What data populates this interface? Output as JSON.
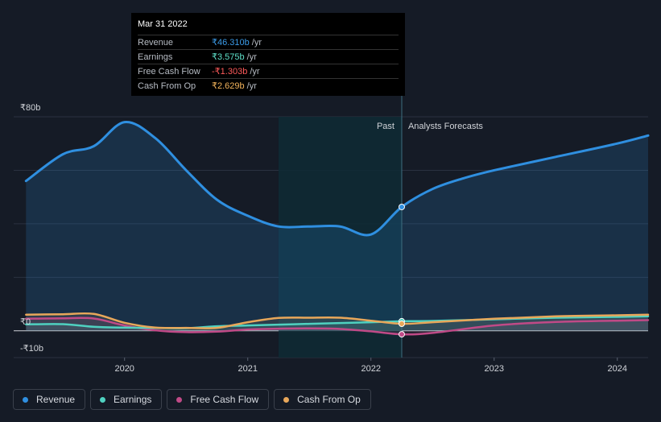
{
  "tooltip": {
    "date": "Mar 31 2022",
    "rows": [
      {
        "label": "Revenue",
        "value": "₹46.310b",
        "unit": "/yr",
        "color": "#3b9be8"
      },
      {
        "label": "Earnings",
        "value": "₹3.575b",
        "unit": "/yr",
        "color": "#5ee0c9"
      },
      {
        "label": "Free Cash Flow",
        "value": "-₹1.303b",
        "unit": "/yr",
        "color": "#ff5a5a"
      },
      {
        "label": "Cash From Op",
        "value": "₹2.629b",
        "unit": "/yr",
        "color": "#f2b35b"
      }
    ]
  },
  "region_labels": {
    "past": "Past",
    "forecast": "Analysts Forecasts"
  },
  "legend": [
    {
      "label": "Revenue",
      "color": "#2f8fe0"
    },
    {
      "label": "Earnings",
      "color": "#4fd1c0"
    },
    {
      "label": "Free Cash Flow",
      "color": "#c04a87"
    },
    {
      "label": "Cash From Op",
      "color": "#e8a75a"
    }
  ],
  "chart_data": {
    "type": "line",
    "y_tick_labels": [
      "₹80b",
      "₹0",
      "-₹10b"
    ],
    "x_tick_labels": [
      "2020",
      "2021",
      "2022",
      "2023",
      "2024"
    ],
    "ylim": [
      -10,
      80
    ],
    "xlim": [
      2019.1,
      2024.25
    ],
    "past_end": 2022.25,
    "highlight_start": 2021.25,
    "series": [
      {
        "name": "Revenue",
        "color": "#2f8fe0",
        "x": [
          2019.2,
          2019.5,
          2019.75,
          2020.0,
          2020.25,
          2020.5,
          2020.75,
          2021.0,
          2021.25,
          2021.5,
          2021.75,
          2022.0,
          2022.25,
          2022.5,
          2022.75,
          2023.0,
          2023.5,
          2024.0,
          2024.25
        ],
        "y": [
          56,
          66,
          69,
          78,
          72,
          60,
          49,
          43,
          39,
          39,
          39,
          36,
          46.3,
          53,
          57,
          60,
          65,
          70,
          73
        ]
      },
      {
        "name": "Earnings",
        "color": "#4fd1c0",
        "x": [
          2019.2,
          2019.5,
          2019.75,
          2020.0,
          2020.25,
          2020.5,
          2020.75,
          2021.0,
          2021.25,
          2021.5,
          2021.75,
          2022.0,
          2022.25,
          2022.5,
          2023.0,
          2023.5,
          2024.0,
          2024.25
        ],
        "y": [
          2.4,
          2.5,
          1.5,
          1.2,
          1.1,
          1.0,
          1.7,
          2.0,
          2.3,
          2.6,
          2.9,
          3.2,
          3.575,
          3.7,
          4.3,
          4.9,
          5.2,
          5.4
        ]
      },
      {
        "name": "Free Cash Flow",
        "color": "#c04a87",
        "x": [
          2019.2,
          2019.5,
          2019.75,
          2020.0,
          2020.25,
          2020.5,
          2020.75,
          2021.0,
          2021.25,
          2021.5,
          2021.75,
          2022.0,
          2022.25,
          2022.5,
          2023.0,
          2023.5,
          2024.0,
          2024.25
        ],
        "y": [
          4.5,
          4.7,
          4.6,
          2.0,
          0.2,
          -0.5,
          -0.3,
          0.5,
          0.8,
          0.9,
          0.7,
          -0.2,
          -1.303,
          -0.8,
          2.0,
          3.3,
          3.8,
          4.0
        ]
      },
      {
        "name": "Cash From Op",
        "color": "#e8a75a",
        "x": [
          2019.2,
          2019.5,
          2019.75,
          2020.0,
          2020.25,
          2020.5,
          2020.75,
          2021.0,
          2021.25,
          2021.5,
          2021.75,
          2022.0,
          2022.25,
          2022.5,
          2023.0,
          2023.5,
          2024.0,
          2024.25
        ],
        "y": [
          6.0,
          6.2,
          6.3,
          3.0,
          1.2,
          1.1,
          1.1,
          3.2,
          4.8,
          4.9,
          4.9,
          3.8,
          2.629,
          3.2,
          4.5,
          5.4,
          5.8,
          6.0
        ]
      }
    ]
  }
}
